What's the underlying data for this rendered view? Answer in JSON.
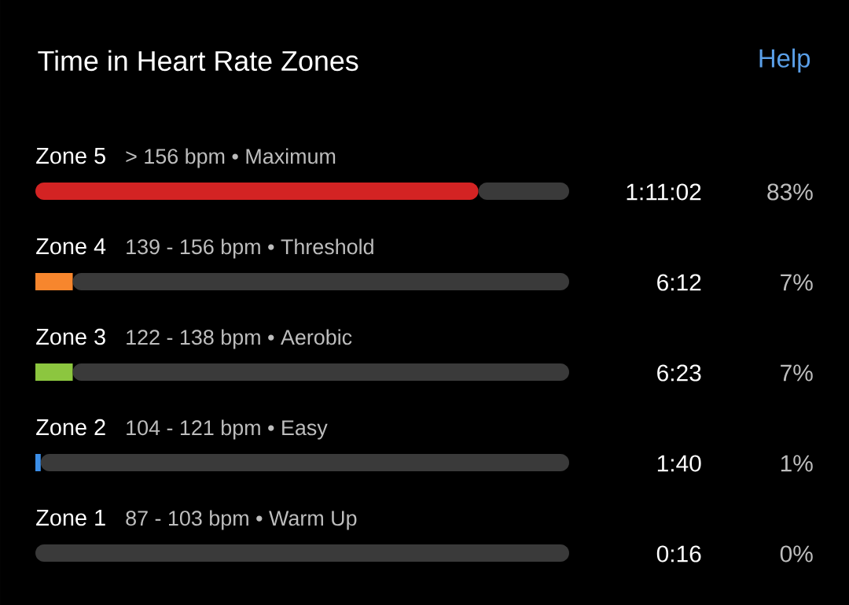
{
  "chart_data": {
    "type": "bar",
    "orientation": "horizontal",
    "stacked": true,
    "title": "Time in Heart Rate Zones",
    "categories": [
      "Zone 5",
      "Zone 4",
      "Zone 3",
      "Zone 2",
      "Zone 1"
    ],
    "series": [
      {
        "colors": [
          "#d32323",
          "#f7862d",
          "#8cc63f",
          "#3b8ee8",
          "#e0e0e0"
        ],
        "values": [
          83,
          7,
          7,
          1,
          0
        ],
        "value_labels": [
          "83%",
          "7%",
          "7%",
          "1%",
          "0%"
        ]
      },
      {
        "color": "#3a3a3a",
        "values": [
          17,
          93,
          93,
          99,
          100
        ]
      }
    ],
    "xlim": [
      0,
      100
    ],
    "annotations": [
      "Help",
      "> 156 bpm • Maximum",
      "1:11:02",
      "139 - 156 bpm • Threshold",
      "6:12",
      "122 - 138 bpm • Aerobic",
      "6:23",
      "104 - 121 bpm • Easy",
      "1:40",
      "87 - 103 bpm • Warm Up",
      "0:16"
    ]
  }
}
